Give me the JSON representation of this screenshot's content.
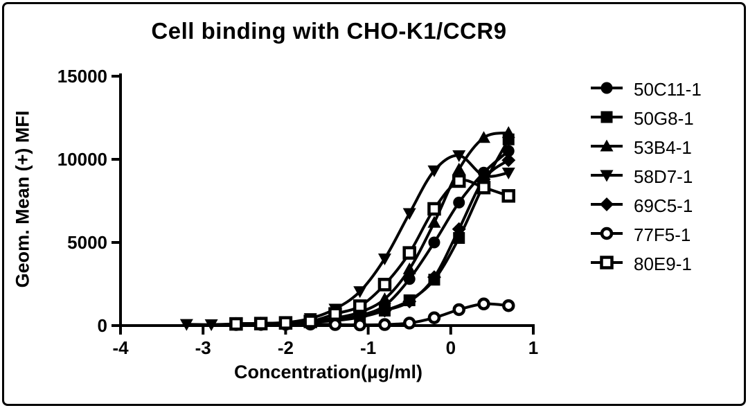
{
  "colors": {
    "foreground": "#000000",
    "background": "#ffffff"
  },
  "chart_data": {
    "type": "line",
    "title": "Cell binding with CHO-K1/CCR9",
    "xlabel": "Concentration(µg/ml)",
    "ylabel": "Geom. Mean (+) MFI",
    "xlim": [
      -4,
      1
    ],
    "ylim": [
      0,
      15000
    ],
    "x_ticks": [
      -4,
      -3,
      -2,
      -1,
      0,
      1
    ],
    "y_ticks": [
      0,
      5000,
      10000,
      15000
    ],
    "grid": false,
    "legend_position": "right",
    "series": [
      {
        "name": "50C11-1",
        "marker": "circle-filled",
        "x": [
          -2.6,
          -2.3,
          -2.0,
          -1.7,
          -1.4,
          -1.1,
          -0.8,
          -0.5,
          -0.2,
          0.1,
          0.4,
          0.7
        ],
        "y": [
          100,
          120,
          150,
          220,
          350,
          600,
          1200,
          2800,
          5000,
          7400,
          9200,
          10500
        ]
      },
      {
        "name": "50G8-1",
        "marker": "square-filled",
        "x": [
          -2.6,
          -2.3,
          -2.0,
          -1.7,
          -1.4,
          -1.1,
          -0.8,
          -0.5,
          -0.2,
          0.1,
          0.4,
          0.7
        ],
        "y": [
          120,
          130,
          160,
          210,
          300,
          500,
          900,
          1520,
          2760,
          5270,
          8480,
          11200
        ]
      },
      {
        "name": "53B4-1",
        "marker": "triangle-up-filled",
        "x": [
          -2.6,
          -2.3,
          -2.0,
          -1.7,
          -1.4,
          -1.1,
          -0.8,
          -0.5,
          -0.2,
          0.1,
          0.4,
          0.7
        ],
        "y": [
          100,
          130,
          170,
          260,
          450,
          800,
          1600,
          3400,
          6200,
          9400,
          11300,
          11600
        ]
      },
      {
        "name": "58D7-1",
        "marker": "triangle-down-filled",
        "x": [
          -3.2,
          -2.9,
          -2.6,
          -2.3,
          -2.0,
          -1.7,
          -1.4,
          -1.1,
          -0.8,
          -0.5,
          -0.2,
          0.1,
          0.4,
          0.7
        ],
        "y": [
          80,
          60,
          100,
          130,
          180,
          430,
          1000,
          2050,
          4020,
          6750,
          9320,
          10230,
          9020,
          9190
        ]
      },
      {
        "name": "69C5-1",
        "marker": "diamond-filled",
        "x": [
          -2.6,
          -2.3,
          -2.0,
          -1.7,
          -1.4,
          -1.1,
          -0.8,
          -0.5,
          -0.2,
          0.1,
          0.4,
          0.7
        ],
        "y": [
          100,
          120,
          150,
          200,
          330,
          550,
          900,
          1450,
          2910,
          5800,
          8800,
          9950
        ]
      },
      {
        "name": "77F5-1",
        "marker": "circle-open",
        "x": [
          -2.6,
          -2.3,
          -2.0,
          -1.7,
          -1.4,
          -1.1,
          -0.8,
          -0.5,
          -0.2,
          0.1,
          0.4,
          0.7
        ],
        "y": [
          60,
          70,
          80,
          90,
          60,
          40,
          60,
          150,
          470,
          960,
          1300,
          1200
        ]
      },
      {
        "name": "80E9-1",
        "marker": "square-open",
        "x": [
          -2.6,
          -2.3,
          -2.0,
          -1.7,
          -1.4,
          -1.1,
          -0.8,
          -0.5,
          -0.2,
          0.1,
          0.4,
          0.7
        ],
        "y": [
          100,
          120,
          160,
          250,
          700,
          1170,
          2465,
          4370,
          7020,
          8690,
          8300,
          7800
        ]
      }
    ]
  }
}
